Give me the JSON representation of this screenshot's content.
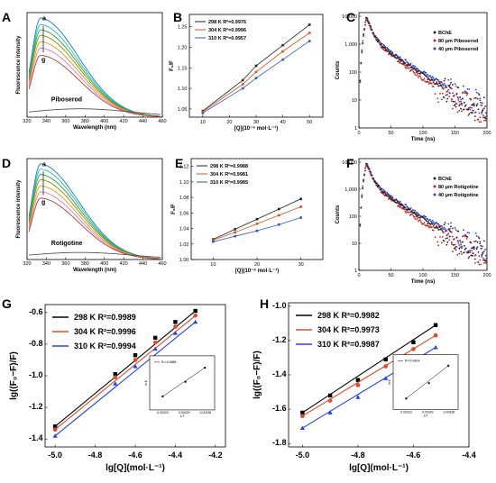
{
  "chart_data": [
    {
      "id": "A",
      "type": "line",
      "title": "",
      "xlabel": "Wavelength (nm)",
      "ylabel": "Fluorescence intensity",
      "xlim": [
        320,
        460
      ],
      "ylim": [
        0,
        600
      ],
      "x_ticks": [
        320,
        340,
        360,
        380,
        400,
        420,
        440,
        460
      ],
      "annotations": [
        "a",
        "g",
        "Piboserod"
      ],
      "peak_x": 334,
      "series_peaks": [
        545,
        510,
        480,
        450,
        415,
        380,
        340
      ],
      "compound_peak": 48,
      "colors": [
        "#1f77b4",
        "#17becf",
        "#2ca02c",
        "#8c8c00",
        "#d4a017",
        "#e377c2",
        "#c0392b"
      ]
    },
    {
      "id": "B",
      "type": "line",
      "xlabel": "[Q](10⁻⁶ mol·L⁻¹)",
      "ylabel": "F₀/F",
      "xlim": [
        5,
        55
      ],
      "ylim": [
        1.03,
        1.28
      ],
      "x_ticks": [
        10,
        20,
        30,
        40,
        50
      ],
      "y_ticks": [
        1.05,
        1.1,
        1.15,
        1.2,
        1.25
      ],
      "series": [
        {
          "name": "298 K R²=0.9976",
          "color": "#222222",
          "x": [
            10,
            25,
            30,
            40,
            50
          ],
          "values": [
            1.045,
            1.12,
            1.155,
            1.205,
            1.255
          ]
        },
        {
          "name": "304 K R²=0.9996",
          "color": "#d9541e",
          "x": [
            10,
            25,
            30,
            40,
            50
          ],
          "values": [
            1.043,
            1.11,
            1.14,
            1.19,
            1.235
          ]
        },
        {
          "name": "310 K R²=0.9957",
          "color": "#3355cc",
          "x": [
            10,
            25,
            30,
            40,
            50
          ],
          "values": [
            1.04,
            1.1,
            1.125,
            1.17,
            1.215
          ]
        }
      ]
    },
    {
      "id": "C",
      "type": "scatter",
      "xlabel": "Time (ns)",
      "ylabel": "Counts",
      "xlim": [
        0,
        200
      ],
      "ylog": true,
      "ylim": [
        1,
        10000
      ],
      "x_ticks": [
        0,
        50,
        100,
        150,
        200
      ],
      "y_tick_labels": [
        "1",
        "10",
        "100",
        "1,000",
        "10,000"
      ],
      "series": [
        {
          "name": "BChE",
          "color": "#222222"
        },
        {
          "name": "80 μm Piboserod",
          "color": "#cc2222"
        },
        {
          "name": "40 μm Piboserod",
          "color": "#3344cc"
        }
      ]
    },
    {
      "id": "D",
      "type": "line",
      "xlabel": "Wavelength (nm)",
      "ylabel": "Fluorescence intensity",
      "xlim": [
        320,
        460
      ],
      "ylim": [
        0,
        600
      ],
      "x_ticks": [
        320,
        340,
        360,
        380,
        400,
        420,
        440,
        460
      ],
      "annotations": [
        "a",
        "g",
        "Rotigotine"
      ],
      "peak_x": 334,
      "series_peaks": [
        545,
        515,
        485,
        455,
        420,
        385,
        350
      ],
      "compound_peak": 42,
      "colors": [
        "#1f77b4",
        "#17becf",
        "#2ca02c",
        "#8c8c00",
        "#d4a017",
        "#e377c2",
        "#c0392b"
      ]
    },
    {
      "id": "E",
      "type": "line",
      "xlabel": "[Q](10⁻⁶ mol·L⁻¹)",
      "ylabel": "F₀/F",
      "xlim": [
        5,
        35
      ],
      "ylim": [
        1.0,
        1.13
      ],
      "x_ticks": [
        10,
        20,
        30
      ],
      "y_ticks": [
        1.0,
        1.02,
        1.04,
        1.06,
        1.08,
        1.1,
        1.12
      ],
      "series": [
        {
          "name": "298 K R²=0.9988",
          "color": "#222222",
          "x": [
            10,
            15,
            20,
            25,
            30
          ],
          "values": [
            1.026,
            1.039,
            1.052,
            1.065,
            1.078
          ]
        },
        {
          "name": "304 K R²=0.9981",
          "color": "#d9541e",
          "x": [
            10,
            15,
            20,
            25,
            30
          ],
          "values": [
            1.025,
            1.035,
            1.046,
            1.057,
            1.068
          ]
        },
        {
          "name": "310 K R²=0.9985",
          "color": "#3355cc",
          "x": [
            10,
            15,
            20,
            25,
            30
          ],
          "values": [
            1.023,
            1.03,
            1.037,
            1.045,
            1.054
          ]
        }
      ]
    },
    {
      "id": "F",
      "type": "scatter",
      "xlabel": "Time (ns)",
      "ylabel": "Counts",
      "xlim": [
        0,
        200
      ],
      "ylog": true,
      "ylim": [
        1,
        10000
      ],
      "x_ticks": [
        0,
        50,
        100,
        150,
        200
      ],
      "y_tick_labels": [
        "1",
        "10",
        "100",
        "1,000",
        "10,000"
      ],
      "series": [
        {
          "name": "BChE",
          "color": "#222222"
        },
        {
          "name": "80 μm Rotigotine",
          "color": "#cc2222"
        },
        {
          "name": "40 μm Rotigotine",
          "color": "#3344cc"
        }
      ]
    },
    {
      "id": "G",
      "type": "line",
      "xlabel": "lg[Q](mol·L⁻¹)",
      "ylabel": "lg((F₀−F)/F)",
      "xlim": [
        -5.05,
        -4.15
      ],
      "ylim": [
        -1.45,
        -0.55
      ],
      "x_ticks": [
        -5.0,
        -4.8,
        -4.6,
        -4.4,
        -4.2
      ],
      "x_tick_labels": [
        "-5.0",
        "-4.8",
        "-4.6",
        "-4.4",
        "-4.2"
      ],
      "y_ticks": [
        -1.4,
        -1.2,
        -1.0,
        -0.8,
        -0.6
      ],
      "y_tick_labels": [
        "-1.4",
        "-1.2",
        "-1.0",
        "-0.8",
        "-0.6"
      ],
      "series": [
        {
          "name": "298 K R²=0.9989",
          "color": "#000000",
          "marker": "square",
          "x": [
            -5.0,
            -4.7,
            -4.6,
            -4.5,
            -4.4,
            -4.3
          ],
          "values": [
            -1.32,
            -0.99,
            -0.87,
            -0.76,
            -0.66,
            -0.59
          ]
        },
        {
          "name": "304 K R²=0.9996",
          "color": "#e04a2a",
          "marker": "circle",
          "x": [
            -5.0,
            -4.7,
            -4.6,
            -4.5,
            -4.4,
            -4.3
          ],
          "values": [
            -1.34,
            -1.01,
            -0.9,
            -0.79,
            -0.69,
            -0.62
          ]
        },
        {
          "name": "310 K R²=0.9994",
          "color": "#2244ee",
          "marker": "triangle",
          "x": [
            -5.0,
            -4.7,
            -4.6,
            -4.5,
            -4.4,
            -4.3
          ],
          "values": [
            -1.38,
            -1.05,
            -0.94,
            -0.83,
            -0.73,
            -0.66
          ]
        }
      ],
      "inset": {
        "label": "R²=0.9888",
        "x_tick_labels": [
          "0.00323",
          "0.00329",
          "0.00335"
        ],
        "ylabel": "ln K",
        "xlabel": "1/T",
        "points": [
          [
            0.2,
            0.25
          ],
          [
            0.55,
            0.52
          ],
          [
            0.85,
            0.78
          ]
        ]
      }
    },
    {
      "id": "H",
      "type": "line",
      "xlabel": "lg[Q](mol·L⁻¹)",
      "ylabel": "lg((F₀−F)/F)",
      "xlim": [
        -5.05,
        -4.4
      ],
      "ylim": [
        -1.82,
        -0.98
      ],
      "x_ticks": [
        -5.0,
        -4.8,
        -4.6,
        -4.4
      ],
      "x_tick_labels": [
        "-5.0",
        "-4.8",
        "-4.6",
        "-4.4"
      ],
      "y_ticks": [
        -1.8,
        -1.6,
        -1.4,
        -1.2,
        -1.0
      ],
      "y_tick_labels": [
        "-1.8",
        "-1.6",
        "-1.4",
        "-1.2",
        "-1.0"
      ],
      "series": [
        {
          "name": "298 K R²=0.9982",
          "color": "#000000",
          "marker": "square",
          "x": [
            -5.0,
            -4.9,
            -4.8,
            -4.7,
            -4.6,
            -4.52
          ],
          "values": [
            -1.62,
            -1.52,
            -1.43,
            -1.31,
            -1.21,
            -1.11
          ]
        },
        {
          "name": "304 K R²=0.9973",
          "color": "#e04a2a",
          "marker": "circle",
          "x": [
            -5.0,
            -4.9,
            -4.8,
            -4.7,
            -4.6,
            -4.52
          ],
          "values": [
            -1.64,
            -1.55,
            -1.46,
            -1.35,
            -1.25,
            -1.17
          ]
        },
        {
          "name": "310 K R²=0.9987",
          "color": "#2244ee",
          "marker": "triangle",
          "x": [
            -5.0,
            -4.9,
            -4.8,
            -4.7,
            -4.6,
            -4.52
          ],
          "values": [
            -1.71,
            -1.62,
            -1.53,
            -1.42,
            -1.33,
            -1.24
          ]
        }
      ],
      "inset": {
        "label": "R²=0.9814",
        "x_tick_labels": [
          "0.00323",
          "0.00329",
          "0.00335"
        ],
        "ylabel": "ln K",
        "xlabel": "1/T",
        "points": [
          [
            0.2,
            0.2
          ],
          [
            0.55,
            0.48
          ],
          [
            0.85,
            0.8
          ]
        ]
      }
    }
  ]
}
